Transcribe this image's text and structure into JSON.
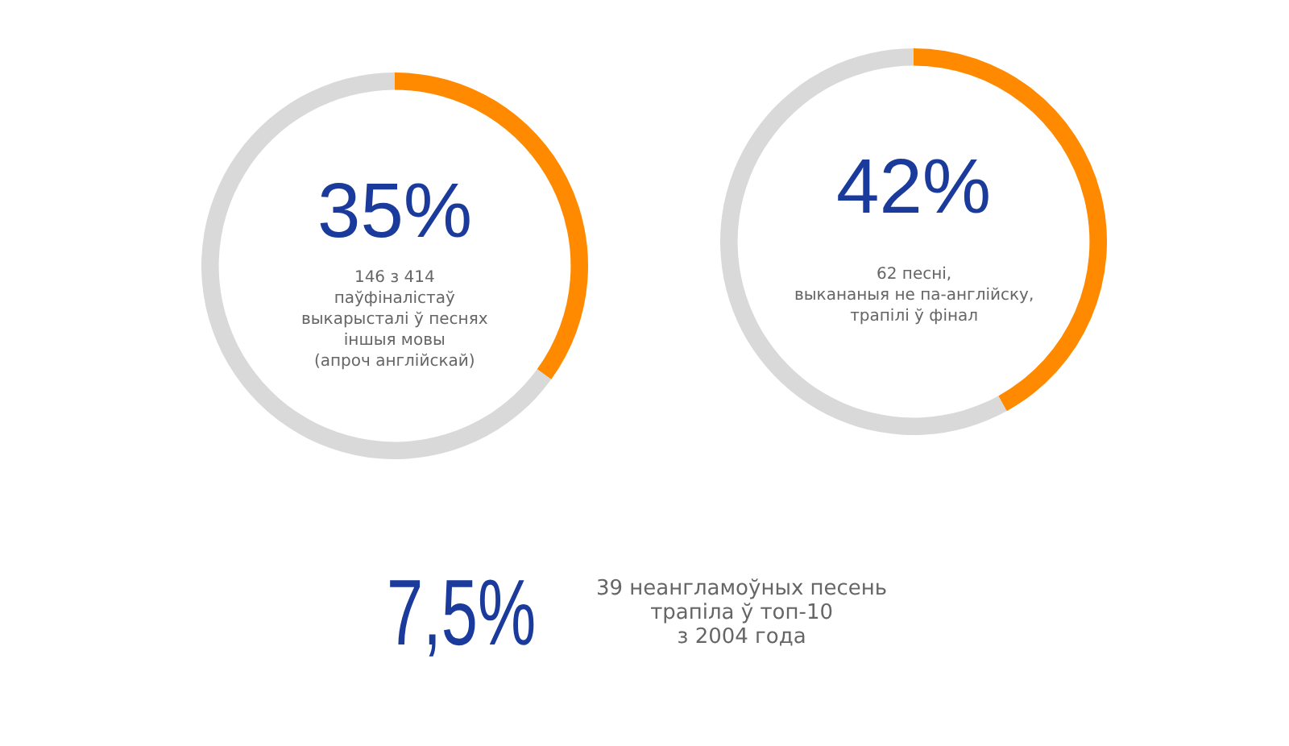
{
  "chart_data": [
    {
      "type": "donut",
      "title": "35%",
      "subtitle": "146 з 414\nпаўфіналістаў\nвыкарысталі ў песнях\nіншыя мовы\n(апроч англійскай)",
      "categories": [
        null,
        null
      ],
      "values": [
        35,
        65
      ],
      "colors": [
        "#ff8a00",
        "#d9d9d9"
      ]
    },
    {
      "type": "donut",
      "title": "42%",
      "subtitle": "62 песні,\nвыкананыя не па-англійску,\nтрапілі ў фінал",
      "categories": [
        null,
        null
      ],
      "values": [
        42,
        58
      ],
      "colors": [
        "#ff8a00",
        "#d9d9d9"
      ]
    },
    {
      "type": "other",
      "title": "7,5%",
      "subtitle": "39 неангламоўных песень\nтрапіла ў топ-10\nз 2004 года"
    }
  ]
}
